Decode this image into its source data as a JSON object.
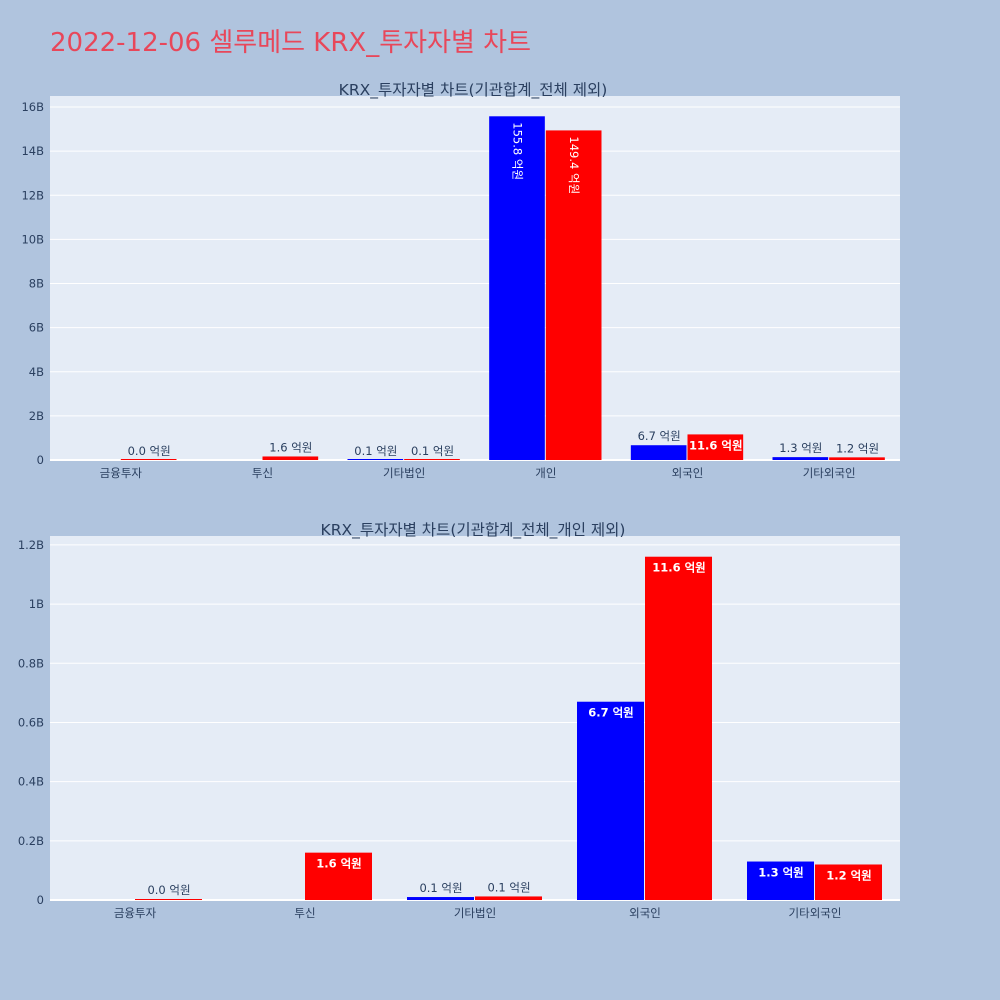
{
  "page_title": "2022-12-06 셀루메드 KRX_투자자별 차트",
  "colors": {
    "series_1": "#0000ff",
    "series_2": "#ff0000",
    "title": "#e8475a",
    "paper": "#b0c4de",
    "plot": "#e5ecf6"
  },
  "chart_data": [
    {
      "type": "bar",
      "title": "KRX_투자자별 차트(기관합계_전체 제외)",
      "categories": [
        "금융투자",
        "투신",
        "기타법인",
        "개인",
        "외국인",
        "기타외국인"
      ],
      "ylim": [
        0,
        16500000000
      ],
      "yticks": [
        0,
        2000000000,
        4000000000,
        6000000000,
        8000000000,
        10000000000,
        12000000000,
        14000000000,
        16000000000
      ],
      "ytick_labels": [
        "0",
        "2B",
        "4B",
        "6B",
        "8B",
        "10B",
        "12B",
        "14B",
        "16B"
      ],
      "grid": true,
      "series": [
        {
          "values": [
            null,
            null,
            9000000,
            15580000000,
            670000000,
            130000000
          ],
          "labels": [
            "",
            "",
            "0.1 억원",
            "155.8 억원",
            "6.7 억원",
            "1.3 억원"
          ]
        },
        {
          "values": [
            3000000,
            160000000,
            10000000,
            14940000000,
            1160000000,
            120000000
          ],
          "labels": [
            "0.0 억원",
            "1.6 억원",
            "0.1 억원",
            "149.4 억원",
            "11.6 억원",
            "1.2 억원"
          ]
        }
      ]
    },
    {
      "type": "bar",
      "title": "KRX_투자자별 차트(기관합계_전체_개인 제외)",
      "categories": [
        "금융투자",
        "투신",
        "기타법인",
        "외국인",
        "기타외국인"
      ],
      "ylim": [
        0,
        1230000000
      ],
      "yticks": [
        0,
        200000000,
        400000000,
        600000000,
        800000000,
        1000000000,
        1200000000
      ],
      "ytick_labels": [
        "0",
        "0.2B",
        "0.4B",
        "0.6B",
        "0.8B",
        "1B",
        "1.2B"
      ],
      "grid": true,
      "series": [
        {
          "values": [
            null,
            null,
            10000000,
            670000000,
            130000000
          ],
          "labels": [
            "",
            "",
            "0.1 억원",
            "6.7 억원",
            "1.3 억원"
          ]
        },
        {
          "values": [
            3000000,
            160000000,
            12000000,
            1160000000,
            120000000
          ],
          "labels": [
            "0.0 억원",
            "1.6 억원",
            "0.1 억원",
            "11.6 억원",
            "1.2 억원"
          ]
        }
      ]
    }
  ]
}
